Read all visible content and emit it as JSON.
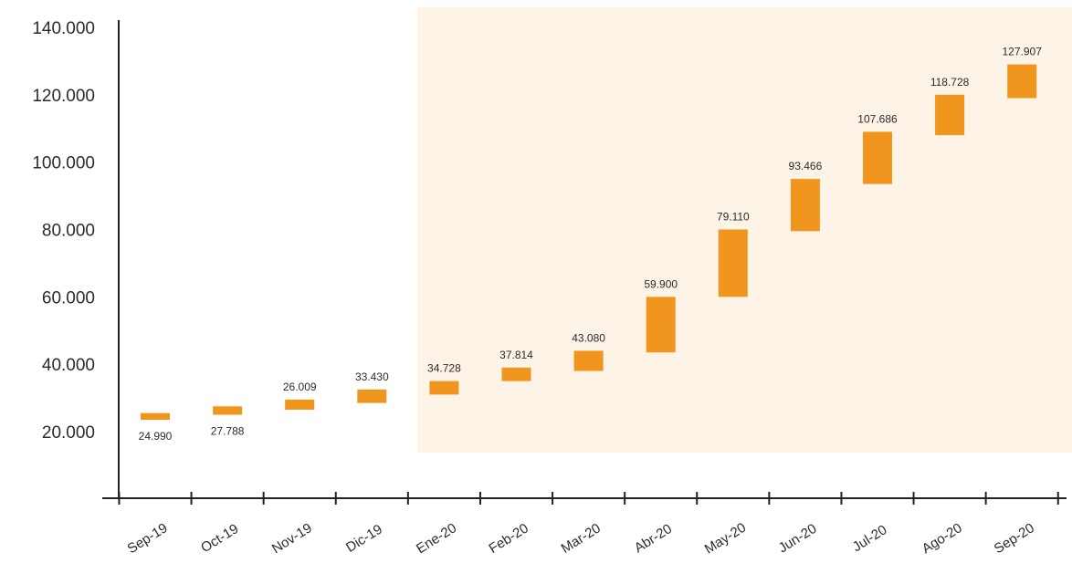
{
  "chart_data": {
    "type": "bar",
    "subtype": "waterfall",
    "categories": [
      "Sep-19",
      "Oct-19",
      "Nov-19",
      "Dic-19",
      "Ene-20",
      "Feb-20",
      "Mar-20",
      "Abr-20",
      "May-20",
      "Jun-20",
      "Jul-20",
      "Ago-20",
      "Sep-20"
    ],
    "values": [
      24990,
      27788,
      26009,
      33430,
      34728,
      37814,
      43080,
      59900,
      79110,
      93466,
      107686,
      118728,
      127907
    ],
    "value_labels": [
      "24.990",
      "27.788",
      "26.009",
      "33.430",
      "34.728",
      "37.814",
      "43.080",
      "59.900",
      "79.110",
      "93.466",
      "107.686",
      "118.728",
      "127.907"
    ],
    "bar_ranges": [
      [
        23500,
        25500
      ],
      [
        25000,
        27500
      ],
      [
        26500,
        29500
      ],
      [
        28500,
        32500
      ],
      [
        31000,
        35000
      ],
      [
        35000,
        39000
      ],
      [
        38000,
        44000
      ],
      [
        43500,
        60000
      ],
      [
        60000,
        80000
      ],
      [
        79500,
        95000
      ],
      [
        93500,
        109000
      ],
      [
        108000,
        120000
      ],
      [
        119000,
        129000
      ]
    ],
    "label_position": [
      "below",
      "below",
      "above",
      "above",
      "above",
      "above",
      "above",
      "above",
      "above",
      "above",
      "above",
      "above",
      "above"
    ],
    "yticks": [
      "20.000",
      "40.000",
      "60.000",
      "80.000",
      "100.000",
      "120.000",
      "140.000"
    ],
    "ytick_values": [
      20000,
      40000,
      60000,
      80000,
      100000,
      120000,
      140000
    ],
    "ylim": [
      0,
      140000
    ],
    "title": "",
    "xlabel": "",
    "ylabel": "",
    "grid": false,
    "highlight_region": {
      "from": "Ene-20",
      "to": "Sep-20"
    },
    "colors": {
      "bar": "#F0961F",
      "highlight": "#FDF3E6",
      "axis": "#222222"
    }
  }
}
